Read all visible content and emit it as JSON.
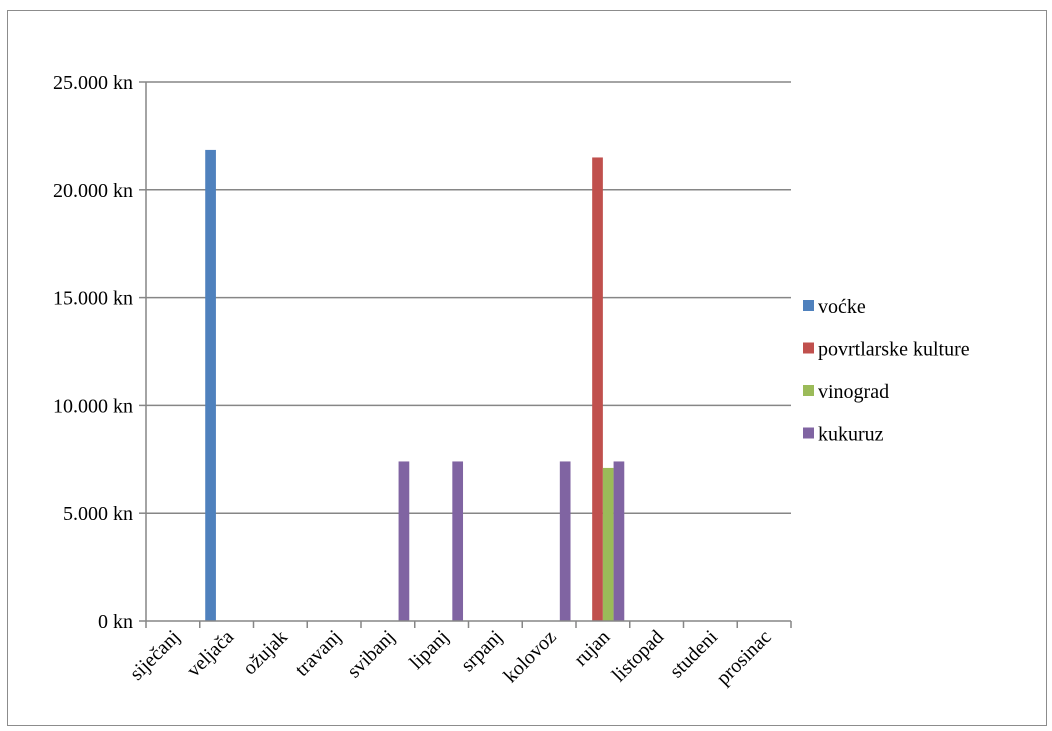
{
  "chart_data": {
    "type": "bar",
    "categories": [
      "siječanj",
      "veljača",
      "ožujak",
      "travanj",
      "svibanj",
      "lipanj",
      "srpanj",
      "kolovoz",
      "rujan",
      "listopad",
      "studeni",
      "prosinac"
    ],
    "series": [
      {
        "name": "voćke",
        "color": "#4f81bd",
        "values": [
          0,
          21850,
          0,
          0,
          0,
          0,
          0,
          0,
          0,
          0,
          0,
          0
        ]
      },
      {
        "name": "povrtlarske kulture",
        "color": "#c0504d",
        "values": [
          0,
          0,
          0,
          0,
          0,
          0,
          0,
          0,
          21500,
          0,
          0,
          0
        ]
      },
      {
        "name": "vinograd",
        "color": "#9bbb59",
        "values": [
          0,
          0,
          0,
          0,
          0,
          0,
          0,
          0,
          7100,
          0,
          0,
          0
        ]
      },
      {
        "name": "kukuruz",
        "color": "#8064a2",
        "values": [
          0,
          0,
          0,
          0,
          7400,
          7400,
          0,
          7400,
          7400,
          0,
          0,
          0
        ]
      }
    ],
    "yticks": [
      "0 kn",
      "5.000 kn",
      "10.000 kn",
      "15.000 kn",
      "20.000 kn",
      "25.000 kn"
    ],
    "ylim": [
      0,
      25000
    ],
    "grid": true,
    "legend_position": "right"
  }
}
